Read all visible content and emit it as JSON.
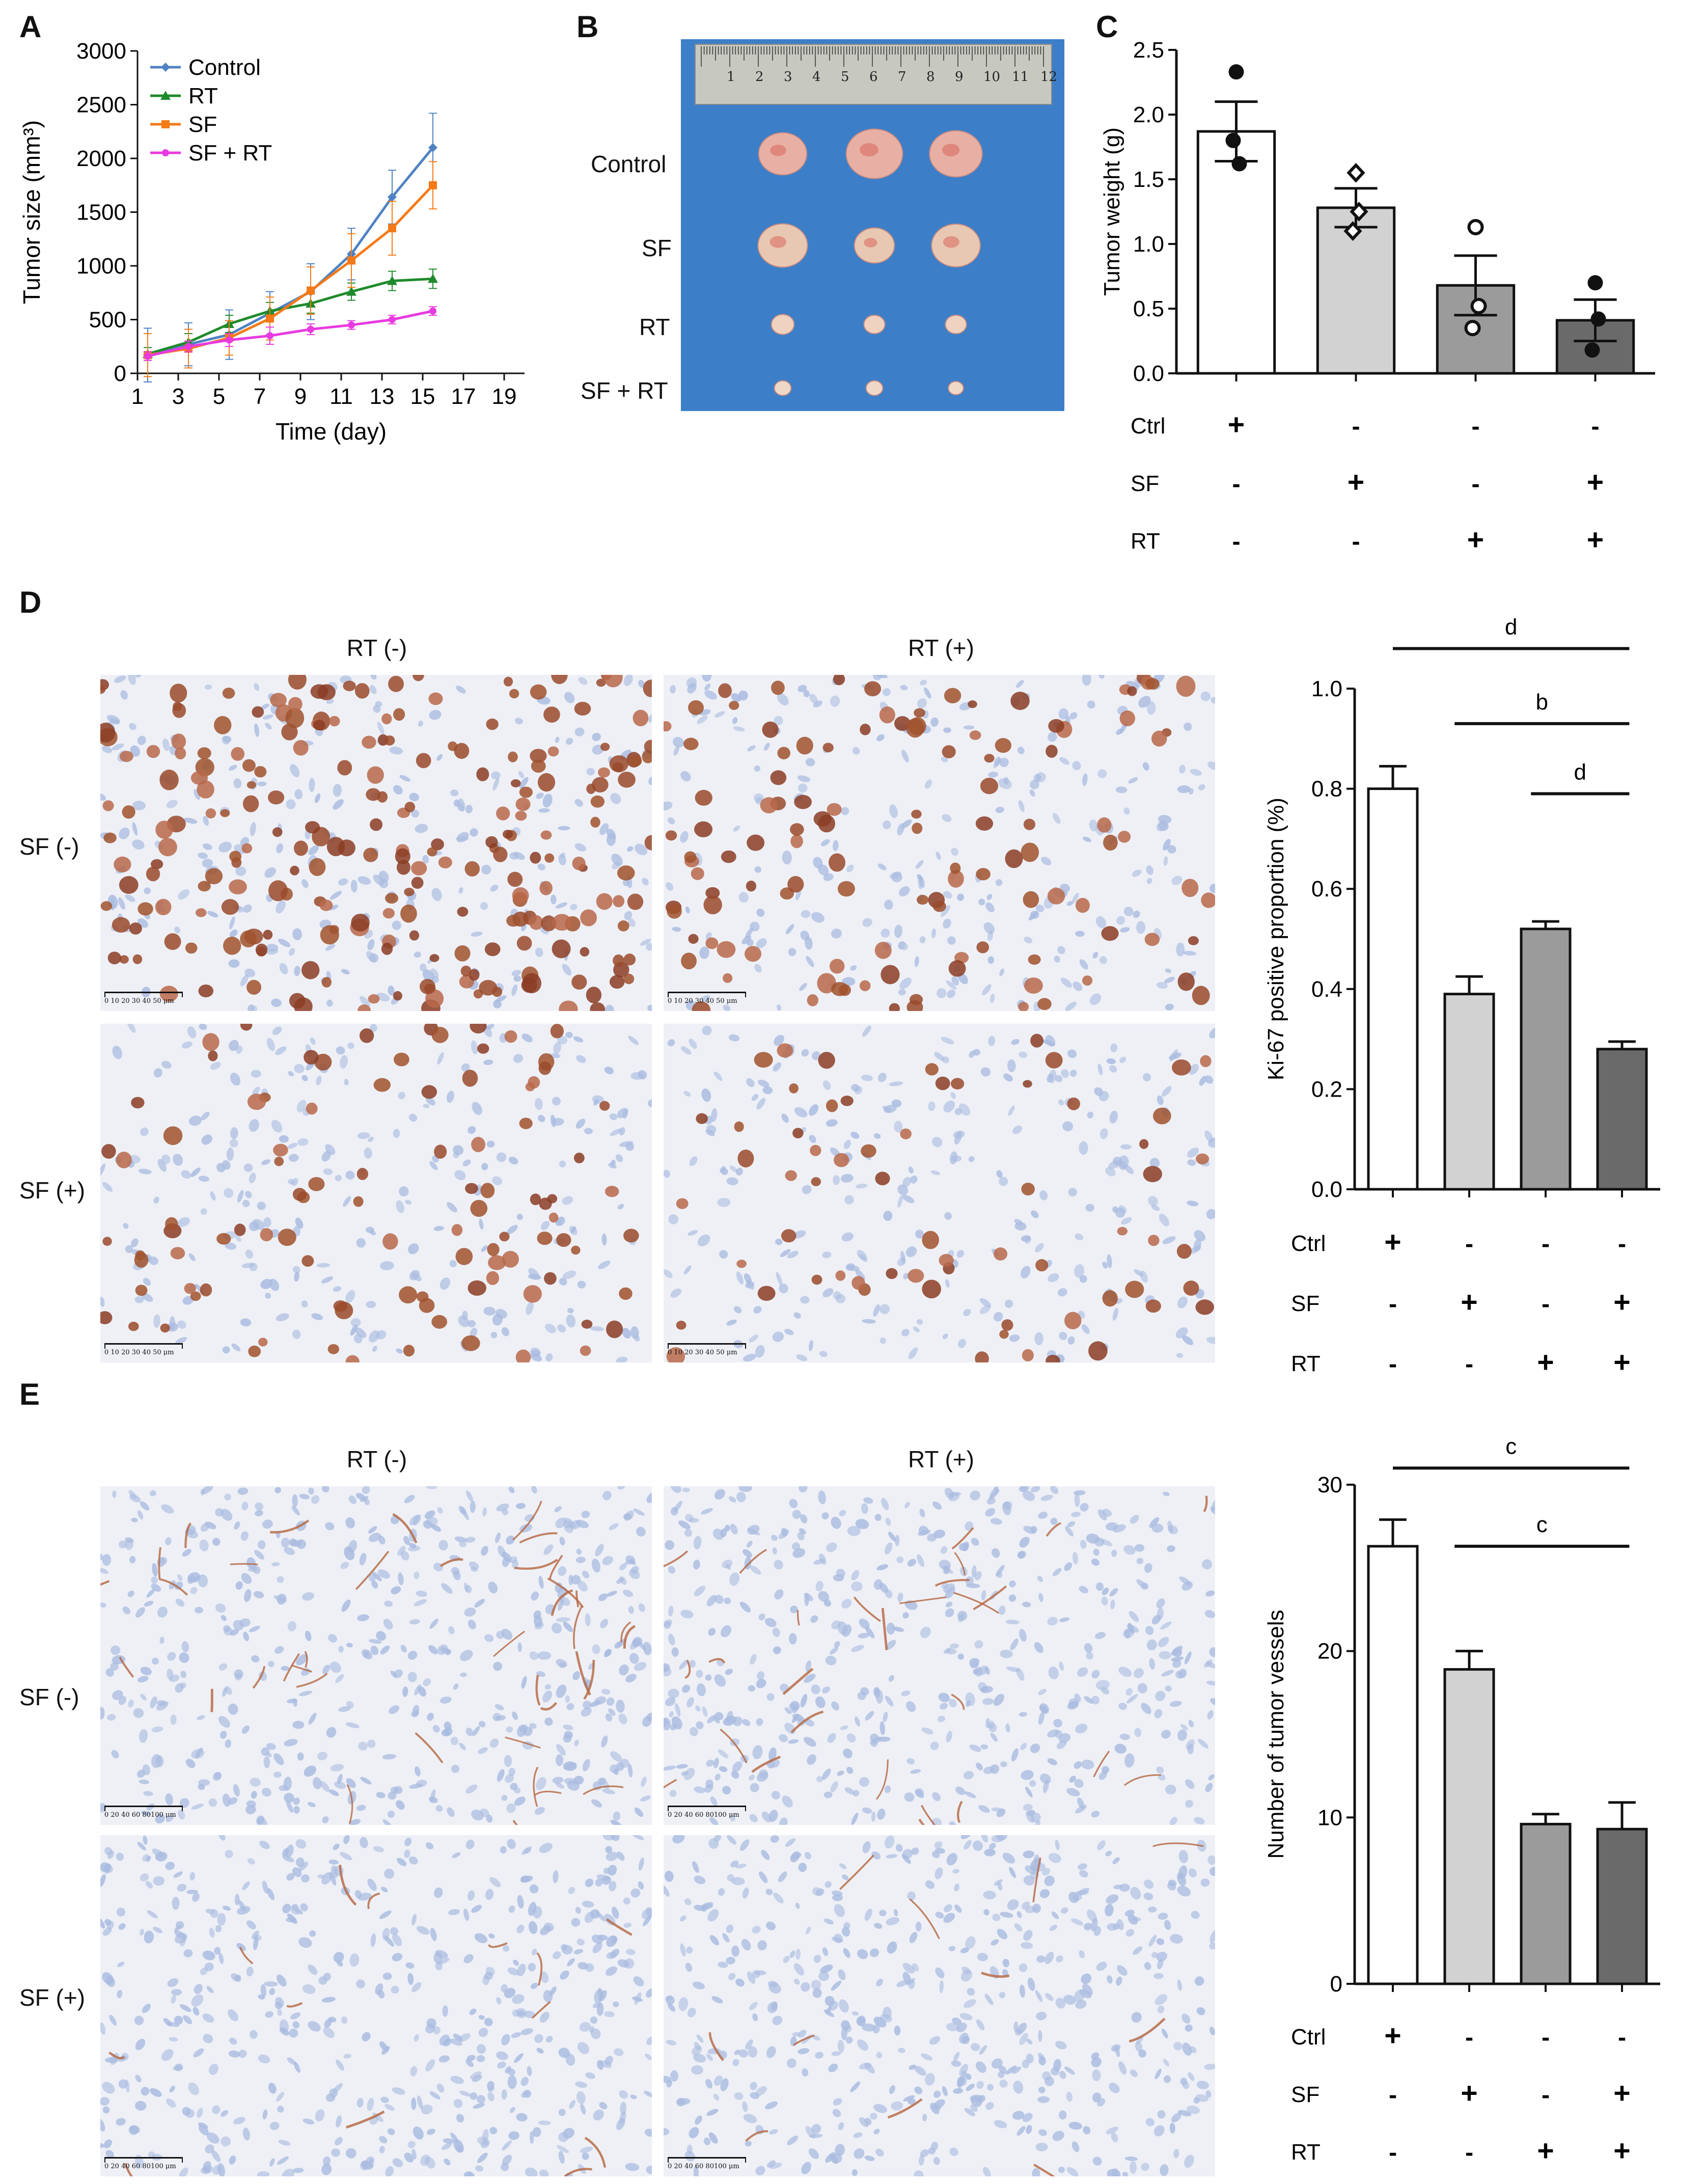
{
  "panels": {
    "A": "A",
    "B": "B",
    "C": "C",
    "D": "D",
    "E": "E"
  },
  "colors": {
    "control": "#4f82c3",
    "rt": "#1f8a2b",
    "sf": "#f47a17",
    "sf_rt": "#e83ae0",
    "tissue_bg": "#eef0f6",
    "ki67_stain": "#a0522d",
    "photo_bg": "#3c7fc8"
  },
  "photo": {
    "ruler_numbers": [
      "1",
      "2",
      "3",
      "4",
      "5",
      "6",
      "7",
      "8",
      "9",
      "10",
      "11",
      "12"
    ],
    "row_labels": [
      "Control",
      "SF",
      "RT",
      "SF + RT"
    ]
  },
  "micrographs": {
    "D": {
      "col_labels": [
        "RT (-)",
        "RT (+)"
      ],
      "row_labels": [
        "SF (-)",
        "SF (+)"
      ],
      "scale_text": "0 10 20 30 40 50 μm"
    },
    "E": {
      "col_labels": [
        "RT (-)",
        "RT (+)"
      ],
      "row_labels": [
        "SF (-)",
        "SF (+)"
      ],
      "scale_text": "0 20 40 60 80100 μm"
    }
  },
  "treatment_table": {
    "row_labels": [
      "Ctrl",
      "SF",
      "RT"
    ],
    "rows": [
      [
        "+",
        "-",
        "-",
        "-"
      ],
      [
        "-",
        "+",
        "-",
        "+"
      ],
      [
        "-",
        "-",
        "+",
        "+"
      ]
    ]
  },
  "chart_data": [
    {
      "id": "A",
      "type": "line",
      "title": "",
      "xlabel": "Time (day)",
      "ylabel": "Tumor size (mm³)",
      "xlim": [
        1,
        20
      ],
      "ylim": [
        0,
        3000
      ],
      "xticks": [
        1,
        3,
        5,
        7,
        9,
        11,
        13,
        15,
        17,
        19
      ],
      "yticks": [
        0,
        500,
        1000,
        1500,
        2000,
        2500,
        3000
      ],
      "legend_position": "top-left",
      "x": [
        1.5,
        3.5,
        5.5,
        7.5,
        9.5,
        11.5,
        13.5,
        15.5
      ],
      "series": [
        {
          "name": "Control",
          "color": "#4f82c3",
          "marker": "diamond",
          "values": [
            170,
            270,
            360,
            560,
            760,
            1110,
            1640,
            2100
          ],
          "errors": [
            250,
            200,
            230,
            200,
            260,
            240,
            250,
            320
          ]
        },
        {
          "name": "RT",
          "color": "#1f8a2b",
          "marker": "triangle",
          "values": [
            180,
            290,
            460,
            580,
            650,
            760,
            860,
            880
          ],
          "errors": [
            60,
            80,
            80,
            80,
            90,
            80,
            90,
            90
          ]
        },
        {
          "name": "SF",
          "color": "#f47a17",
          "marker": "square",
          "values": [
            170,
            230,
            330,
            510,
            770,
            1050,
            1350,
            1750
          ],
          "errors": [
            200,
            180,
            160,
            200,
            220,
            250,
            250,
            220
          ]
        },
        {
          "name": "SF + RT",
          "color": "#e83ae0",
          "marker": "circle",
          "values": [
            160,
            250,
            310,
            350,
            410,
            450,
            500,
            580
          ],
          "errors": [
            40,
            50,
            60,
            80,
            50,
            40,
            40,
            40
          ]
        }
      ]
    },
    {
      "id": "C",
      "type": "bar",
      "title": "",
      "xlabel": "",
      "ylabel": "Tumor weight (g)",
      "ylim": [
        0,
        2.5
      ],
      "yticks": [
        "0.0",
        "0.5",
        "1.0",
        "1.5",
        "2.0",
        "2.5"
      ],
      "groups": 4,
      "values": [
        1.87,
        1.28,
        0.68,
        0.41
      ],
      "errors": [
        0.23,
        0.15,
        0.23,
        0.16
      ],
      "bar_colors": [
        "#ffffff",
        "#d2d2d2",
        "#9b9b9b",
        "#6a6a6a"
      ],
      "points": [
        [
          2.33,
          1.8,
          1.62
        ],
        [
          1.55,
          1.1,
          1.25
        ],
        [
          1.13,
          0.35,
          0.52
        ],
        [
          0.7,
          0.18,
          0.42
        ]
      ],
      "point_markers": [
        "filled-circle",
        "open-diamond",
        "open-circle",
        "filled-circle"
      ]
    },
    {
      "id": "D",
      "type": "bar",
      "title": "",
      "xlabel": "",
      "ylabel": "Ki-67 positive proportion (%)",
      "ylim": [
        0,
        1.0
      ],
      "yticks": [
        "0.0",
        "0.2",
        "0.4",
        "0.6",
        "0.8",
        "1.0"
      ],
      "groups": 4,
      "values": [
        0.8,
        0.39,
        0.52,
        0.28
      ],
      "errors": [
        0.045,
        0.035,
        0.015,
        0.015
      ],
      "bar_colors": [
        "#ffffff",
        "#d2d2d2",
        "#9b9b9b",
        "#6a6a6a"
      ],
      "significance": [
        {
          "from": 0,
          "to": 3,
          "label": "d",
          "level": 1.08
        },
        {
          "from": 1,
          "to": 3,
          "label": "b",
          "level": 0.93
        },
        {
          "from": 2,
          "to": 3,
          "label": "d",
          "level": 0.79
        }
      ]
    },
    {
      "id": "E",
      "type": "bar",
      "title": "",
      "xlabel": "",
      "ylabel": "Number of tumor vessels",
      "ylim": [
        0,
        30
      ],
      "yticks": [
        "0",
        "10",
        "20",
        "30"
      ],
      "groups": 4,
      "values": [
        26.3,
        18.9,
        9.6,
        9.3
      ],
      "errors": [
        1.6,
        1.1,
        0.6,
        1.6
      ],
      "bar_colors": [
        "#ffffff",
        "#d2d2d2",
        "#9b9b9b",
        "#6a6a6a"
      ],
      "significance": [
        {
          "from": 0,
          "to": 3,
          "label": "c",
          "level": 31.0
        },
        {
          "from": 1,
          "to": 3,
          "label": "c",
          "level": 26.3
        }
      ]
    }
  ]
}
